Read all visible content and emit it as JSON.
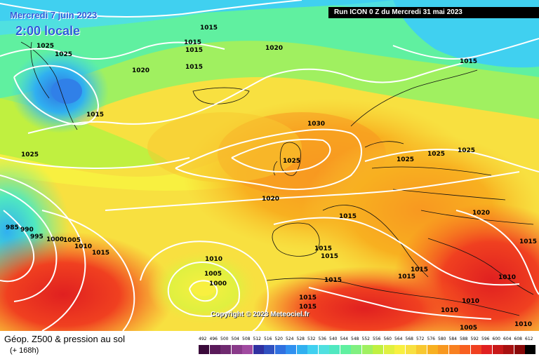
{
  "header": {
    "date_line": "Mercredi 7 juin 2023",
    "time_line": "2:00 locale",
    "run_info": "Run ICON 0 Z du Mercredi 31 mai 2023"
  },
  "copyright": "Copyright © 2023 Meteociel.fr",
  "legend": {
    "title": "Géop. Z500 & pression au sol",
    "subtitle": "(+ 168h)",
    "scale_values": [
      492,
      496,
      500,
      504,
      508,
      512,
      516,
      520,
      524,
      528,
      532,
      536,
      540,
      544,
      548,
      552,
      556,
      560,
      564,
      568,
      572,
      576,
      580,
      584,
      588,
      592,
      596,
      600,
      604,
      608,
      612
    ],
    "scale_colors": [
      "#3a0a3a",
      "#5a1a5a",
      "#702a70",
      "#8a3a8a",
      "#a04aa0",
      "#3030a0",
      "#3050c0",
      "#3070e0",
      "#3090f0",
      "#30b0f0",
      "#40d0f0",
      "#50e0e0",
      "#50e8c0",
      "#60f0a0",
      "#80f080",
      "#a0f060",
      "#c0f040",
      "#e0f040",
      "#f8f040",
      "#f8e040",
      "#f8c830",
      "#f8b020",
      "#f89820",
      "#f88020",
      "#f86020",
      "#f04020",
      "#e02020",
      "#c81818",
      "#a81010",
      "#880808",
      "#000000"
    ]
  },
  "pressure_labels": [
    {
      "text": "1015"
    },
    {
      "text": "1025"
    },
    {
      "text": "1025"
    },
    {
      "text": "1015"
    },
    {
      "text": "1015"
    },
    {
      "text": "1015"
    },
    {
      "text": "1020"
    },
    {
      "text": "1020"
    },
    {
      "text": "1015"
    },
    {
      "text": "1015"
    },
    {
      "text": "1030"
    },
    {
      "text": "1025"
    },
    {
      "text": "1025"
    },
    {
      "text": "1025"
    },
    {
      "text": "1025"
    },
    {
      "text": "1025"
    },
    {
      "text": "1020"
    },
    {
      "text": "1015"
    },
    {
      "text": "1020"
    },
    {
      "text": "985"
    },
    {
      "text": "990"
    },
    {
      "text": "995"
    },
    {
      "text": "1000"
    },
    {
      "text": "1005"
    },
    {
      "text": "1010"
    },
    {
      "text": "1015"
    },
    {
      "text": "1010"
    },
    {
      "text": "1005"
    },
    {
      "text": "1000"
    },
    {
      "text": "1015"
    },
    {
      "text": "1015"
    },
    {
      "text": "1015"
    },
    {
      "text": "1015"
    },
    {
      "text": "1015"
    },
    {
      "text": "1015"
    },
    {
      "text": "1015"
    },
    {
      "text": "1010"
    },
    {
      "text": "1010"
    },
    {
      "text": "1005"
    },
    {
      "text": "1010"
    },
    {
      "text": "1010"
    },
    {
      "text": "1015"
    }
  ]
}
